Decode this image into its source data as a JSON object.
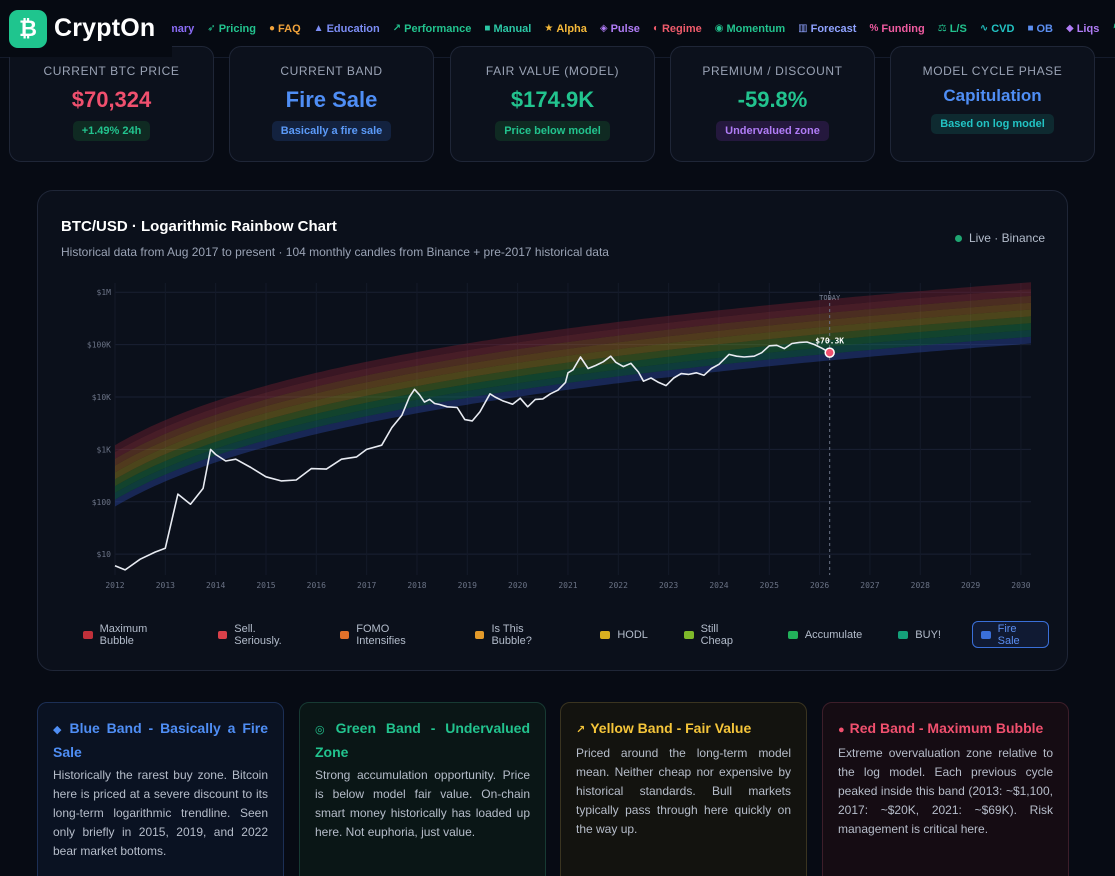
{
  "header": {
    "logo_glyph": "₿",
    "logo_text": "CryptOn",
    "nav": [
      {
        "label": "mary",
        "icon": "",
        "color": "#8b6cf6"
      },
      {
        "label": "Pricing",
        "icon": "➶",
        "color": "#22c38e"
      },
      {
        "label": "FAQ",
        "icon": "●",
        "color": "#f0a23a"
      },
      {
        "label": "Education",
        "icon": "▲",
        "color": "#7c8df5"
      },
      {
        "label": "Performance",
        "icon": "↗",
        "color": "#22c38e"
      },
      {
        "label": "Manual",
        "icon": "■",
        "color": "#2bc7a5"
      },
      {
        "label": "Alpha",
        "icon": "★",
        "color": "#f5b93a"
      },
      {
        "label": "Pulse",
        "icon": "◈",
        "color": "#b07cf6"
      },
      {
        "label": "Regime",
        "icon": "◐",
        "color": "#ef5b6b"
      },
      {
        "label": "Momentum",
        "icon": "◉",
        "color": "#22c38e"
      },
      {
        "label": "Forecast",
        "icon": "▥",
        "color": "#8fa2ff"
      },
      {
        "label": "Funding",
        "icon": "%",
        "color": "#ef5ba0"
      },
      {
        "label": "L/S",
        "icon": "⚖",
        "color": "#22c38e"
      },
      {
        "label": "CVD",
        "icon": "∿",
        "color": "#22c3c3"
      },
      {
        "label": "OB",
        "icon": "■",
        "color": "#5b8ef0"
      },
      {
        "label": "Liqs",
        "icon": "◆",
        "color": "#b07cf6"
      },
      {
        "label": "He",
        "icon": "↯",
        "color": "#22c38e"
      }
    ]
  },
  "stats": [
    {
      "label": "CURRENT BTC PRICE",
      "value": "$70,324",
      "value_color": "#f0506e",
      "pill": "+1.49% 24h",
      "pill_color": "#22c38e",
      "pill_bg": "#0f2a22"
    },
    {
      "label": "CURRENT BAND",
      "value": "Fire Sale",
      "value_color": "#4f8ef5",
      "pill": "Basically a fire sale",
      "pill_color": "#5b9af8",
      "pill_bg": "#13223f"
    },
    {
      "label": "FAIR VALUE (MODEL)",
      "value": "$174.9K",
      "value_color": "#22c38e",
      "pill": "Price below model",
      "pill_color": "#22c38e",
      "pill_bg": "#0f2a22"
    },
    {
      "label": "PREMIUM / DISCOUNT",
      "value": "-59.8%",
      "value_color": "#22c38e",
      "pill": "Undervalued zone",
      "pill_color": "#b07cf6",
      "pill_bg": "#24183d"
    },
    {
      "label": "MODEL CYCLE PHASE",
      "value": "Capitulation",
      "value_color": "#4f8ef5",
      "pill": "Based on log model",
      "pill_color": "#22c3c3",
      "pill_bg": "#0e2a30"
    }
  ],
  "chart": {
    "title": "BTC/USD · Logarithmic Rainbow Chart",
    "subtitle": "Historical data from Aug 2017 to present · 104 monthly candles from Binance + pre-2017 historical data",
    "live_label": "Live · Binance",
    "today_label": "TODAY",
    "price_label": "$70.3K",
    "legend": [
      {
        "label": "Maximum Bubble",
        "color": "#c0303a"
      },
      {
        "label": "Sell. Seriously.",
        "color": "#d8404a"
      },
      {
        "label": "FOMO Intensifies",
        "color": "#e0702a"
      },
      {
        "label": "Is This Bubble?",
        "color": "#e39a2a"
      },
      {
        "label": "HODL",
        "color": "#d9b020"
      },
      {
        "label": "Still Cheap",
        "color": "#7fb82a"
      },
      {
        "label": "Accumulate",
        "color": "#22b05a"
      },
      {
        "label": "BUY!",
        "color": "#14a07a"
      },
      {
        "label": "Fire Sale",
        "color": "#3a6fd8"
      }
    ]
  },
  "chart_data": {
    "type": "line",
    "title": "BTC/USD · Logarithmic Rainbow Chart",
    "x_ticks": [
      "2012",
      "2013",
      "2014",
      "2015",
      "2016",
      "2017",
      "2018",
      "2019",
      "2020",
      "2021",
      "2022",
      "2023",
      "2024",
      "2025",
      "2026",
      "2027",
      "2028",
      "2029",
      "2030"
    ],
    "y_ticks": [
      "$10",
      "$100",
      "$1K",
      "$10K",
      "$100K",
      "$1M"
    ],
    "y_scale": "log",
    "ylim": [
      4,
      1500000
    ],
    "xlim": [
      2012,
      2030.2
    ],
    "series": [
      {
        "x": [
          2012.0,
          2012.2,
          2012.5,
          2012.8,
          2013.0,
          2013.25,
          2013.5,
          2013.75,
          2013.9,
          2014.0,
          2014.2,
          2014.4,
          2014.7,
          2015.0,
          2015.3,
          2015.6,
          2015.9,
          2016.2,
          2016.5,
          2016.8,
          2017.0,
          2017.3,
          2017.5,
          2017.7,
          2017.85,
          2017.95,
          2018.05,
          2018.15,
          2018.25,
          2018.35,
          2018.45,
          2018.6,
          2018.8,
          2018.95,
          2019.1,
          2019.25,
          2019.45,
          2019.55,
          2019.7,
          2019.9,
          2020.05,
          2020.2,
          2020.35,
          2020.5,
          2020.65,
          2020.8,
          2020.95,
          2021.0,
          2021.1,
          2021.25,
          2021.4,
          2021.55,
          2021.7,
          2021.85,
          2021.95,
          2022.1,
          2022.25,
          2022.4,
          2022.5,
          2022.65,
          2022.8,
          2022.95,
          2023.1,
          2023.25,
          2023.4,
          2023.55,
          2023.7,
          2023.85,
          2024.0,
          2024.2,
          2024.35,
          2024.5,
          2024.7,
          2024.85,
          2025.0,
          2025.15,
          2025.3,
          2025.45,
          2025.6,
          2025.75,
          2025.9,
          2026.05,
          2026.2
        ],
        "y": [
          6,
          5,
          8,
          11,
          13,
          140,
          90,
          180,
          1000,
          800,
          600,
          650,
          450,
          300,
          250,
          260,
          430,
          420,
          650,
          720,
          1000,
          1200,
          2600,
          4500,
          10000,
          14000,
          11000,
          8000,
          9000,
          7500,
          7200,
          6500,
          6300,
          3700,
          3500,
          5200,
          11500,
          10000,
          8500,
          7300,
          9500,
          6500,
          9000,
          9200,
          11500,
          13500,
          19000,
          29000,
          33000,
          58000,
          35000,
          40000,
          47000,
          60000,
          46000,
          38000,
          44000,
          30000,
          20000,
          23000,
          19000,
          16500,
          23000,
          28000,
          27000,
          29000,
          26000,
          35000,
          42000,
          65000,
          60000,
          58000,
          60000,
          70000,
          95000,
          97000,
          84000,
          105000,
          110000,
          112000,
          100000,
          85000,
          70324
        ]
      }
    ]
  },
  "info_cards": [
    {
      "icon": "◆",
      "title": "Blue Band - Basically a Fire Sale",
      "title_color": "#4f8ef5",
      "border": "#1c2f55",
      "bg": "#0a1222",
      "body": "Historically the rarest buy zone. Bitcoin here is priced at a severe discount to its long-term logarithmic trendline. Seen only briefly in 2015, 2019, and 2022 bear market bottoms."
    },
    {
      "icon": "◎",
      "title": "Green Band - Undervalued Zone",
      "title_color": "#22c38e",
      "border": "#173a33",
      "bg": "#0a1616",
      "body": "Strong accumulation opportunity. Price is below model fair value. On-chain smart money historically has loaded up here. Not euphoria, just value."
    },
    {
      "icon": "↗",
      "title": "Yellow Band - Fair Value",
      "title_color": "#f5c53a",
      "border": "#3a3420",
      "bg": "#13130f",
      "body": "Priced around the long-term model mean. Neither cheap nor expensive by historical standards. Bull markets typically pass through here quickly on the way up."
    },
    {
      "icon": "●",
      "title": "Red Band - Maximum Bubble",
      "title_color": "#f0506e",
      "border": "#3d1e2a",
      "bg": "#150c13",
      "body": "Extreme overvaluation zone relative to the log model. Each previous cycle peaked inside this band (2013: ~$1,100, 2017: ~$20K, 2021: ~$69K). Risk management is critical here."
    }
  ]
}
